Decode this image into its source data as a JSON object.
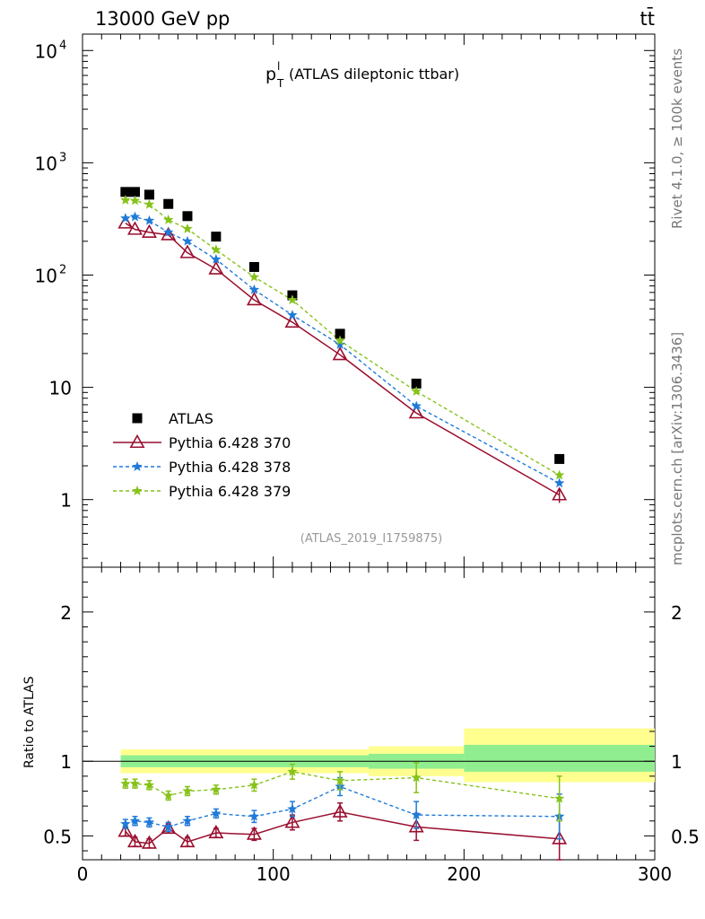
{
  "header": {
    "left_title": "13000 GeV pp",
    "right_title": "tt̄",
    "plot_title_main": "p",
    "plot_title_sup": "l",
    "plot_title_sub": "T",
    "plot_title_rest": " (ATLAS dileptonic ttbar)",
    "analysis_id": "(ATLAS_2019_I1759875)",
    "side_label_top": "Rivet 4.1.0, ≥ 100k events",
    "side_label_bottom": "mcplots.cern.ch [arXiv:1306.3436]"
  },
  "colors": {
    "atlas": "#000000",
    "p370": "#9a0f2f",
    "p378": "#1f7ad8",
    "p379": "#86c21a",
    "band_inner": "#90ee90",
    "band_outer": "#ffff90"
  },
  "chart_data": [
    {
      "type": "scatter",
      "name": "main",
      "yscale": "log",
      "xlim": [
        0,
        300
      ],
      "ylim": [
        0.25,
        14000
      ],
      "ytick_labels": [
        "1",
        "10",
        "10^2",
        "10^3",
        "10^4"
      ],
      "ytick_values": [
        1,
        10,
        100,
        1000,
        10000
      ],
      "legend_position": "lower-left",
      "series": [
        {
          "key": "atlas",
          "name": "ATLAS",
          "x": [
            22.5,
            27.5,
            35,
            45,
            55,
            70,
            90,
            110,
            135,
            175,
            250
          ],
          "y": [
            550,
            550,
            520,
            430,
            335,
            220,
            118,
            66,
            30,
            10.8,
            2.3
          ]
        },
        {
          "key": "p370",
          "name": "Pythia 6.428 370",
          "x": [
            22.5,
            27.5,
            35,
            45,
            55,
            70,
            90,
            110,
            135,
            175,
            250
          ],
          "y": [
            290,
            255,
            240,
            228,
            158,
            113,
            60,
            38,
            19.5,
            5.9,
            1.1
          ]
        },
        {
          "key": "p378",
          "name": "Pythia 6.428 378",
          "x": [
            22.5,
            27.5,
            35,
            45,
            55,
            70,
            90,
            110,
            135,
            175,
            250
          ],
          "y": [
            320,
            330,
            305,
            240,
            200,
            138,
            74,
            44,
            24,
            6.8,
            1.4
          ]
        },
        {
          "key": "p379",
          "name": "Pythia 6.428 379",
          "x": [
            22.5,
            27.5,
            35,
            45,
            55,
            70,
            90,
            110,
            135,
            175,
            250
          ],
          "y": [
            465,
            460,
            425,
            310,
            258,
            168,
            96,
            60,
            26,
            9.2,
            1.65
          ]
        }
      ]
    },
    {
      "type": "line",
      "name": "ratio",
      "ylabel": "Ratio to ATLAS",
      "xlim": [
        0,
        300
      ],
      "ylim": [
        0.34,
        2.3
      ],
      "xtick_labels": [
        "0",
        "100",
        "200",
        "300"
      ],
      "xtick_values": [
        0,
        100,
        200,
        300
      ],
      "ytick_labels": [
        "0.5",
        "1",
        "2"
      ],
      "ytick_values": [
        0.5,
        1,
        2
      ],
      "bands": [
        {
          "x0": 20,
          "x1": 150,
          "inner": [
            0.96,
            1.04
          ],
          "outer": [
            0.92,
            1.08
          ]
        },
        {
          "x0": 150,
          "x1": 200,
          "inner": [
            0.95,
            1.05
          ],
          "outer": [
            0.9,
            1.1
          ]
        },
        {
          "x0": 200,
          "x1": 300,
          "inner": [
            0.93,
            1.11
          ],
          "outer": [
            0.86,
            1.22
          ]
        }
      ],
      "series": [
        {
          "key": "p370",
          "name": "Pythia 6.428 370",
          "x": [
            22.5,
            27.5,
            35,
            45,
            55,
            70,
            90,
            110,
            135,
            175,
            250
          ],
          "y": [
            0.53,
            0.46,
            0.45,
            0.55,
            0.46,
            0.52,
            0.51,
            0.59,
            0.66,
            0.56,
            0.48
          ],
          "err": [
            0.03,
            0.03,
            0.03,
            0.03,
            0.03,
            0.03,
            0.04,
            0.05,
            0.06,
            0.09,
            0.15
          ]
        },
        {
          "key": "p378",
          "name": "Pythia 6.428 378",
          "x": [
            22.5,
            27.5,
            35,
            45,
            55,
            70,
            90,
            110,
            135,
            175,
            250
          ],
          "y": [
            0.58,
            0.6,
            0.59,
            0.56,
            0.6,
            0.65,
            0.63,
            0.68,
            0.83,
            0.64,
            0.63
          ],
          "err": [
            0.03,
            0.03,
            0.03,
            0.03,
            0.03,
            0.03,
            0.04,
            0.05,
            0.06,
            0.09,
            0.15
          ]
        },
        {
          "key": "p379",
          "name": "Pythia 6.428 379",
          "x": [
            22.5,
            27.5,
            35,
            45,
            55,
            70,
            90,
            110,
            135,
            175,
            250
          ],
          "y": [
            0.85,
            0.85,
            0.84,
            0.77,
            0.8,
            0.81,
            0.84,
            0.93,
            0.87,
            0.89,
            0.75
          ],
          "err": [
            0.03,
            0.03,
            0.03,
            0.03,
            0.03,
            0.03,
            0.04,
            0.05,
            0.06,
            0.1,
            0.15
          ]
        }
      ]
    }
  ]
}
